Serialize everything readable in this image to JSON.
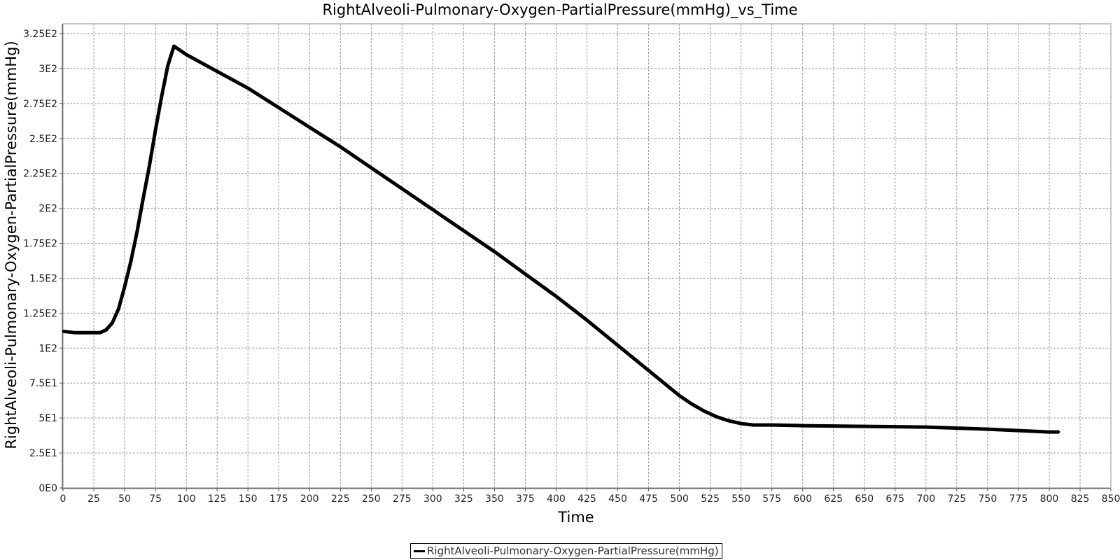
{
  "chart_data": {
    "type": "line",
    "title": "RightAlveoli-Pulmonary-Oxygen-PartialPressure(mmHg)_vs_Time",
    "xlabel": "Time",
    "ylabel": "RightAlveoli-Pulmonary-Oxygen-PartialPressure(mmHg)",
    "xlim": [
      0,
      850
    ],
    "ylim": [
      0,
      332
    ],
    "x_ticks": [
      0,
      25,
      50,
      75,
      100,
      125,
      150,
      175,
      200,
      225,
      250,
      275,
      300,
      325,
      350,
      375,
      400,
      425,
      450,
      475,
      500,
      525,
      550,
      575,
      600,
      625,
      650,
      675,
      700,
      725,
      750,
      775,
      800,
      825,
      850
    ],
    "x_tick_labels": [
      "0",
      "25",
      "50",
      "75",
      "100",
      "125",
      "150",
      "175",
      "200",
      "225",
      "250",
      "275",
      "300",
      "325",
      "350",
      "375",
      "400",
      "425",
      "450",
      "475",
      "500",
      "525",
      "550",
      "575",
      "600",
      "625",
      "650",
      "675",
      "700",
      "725",
      "750",
      "775",
      "800",
      "825",
      "850"
    ],
    "y_ticks": [
      0,
      25,
      50,
      75,
      100,
      125,
      150,
      175,
      200,
      225,
      250,
      275,
      300,
      325
    ],
    "y_tick_labels": [
      "0E0",
      "2.5E1",
      "5E1",
      "7.5E1",
      "1E2",
      "1.25E2",
      "1.5E2",
      "1.75E2",
      "2E2",
      "2.25E2",
      "2.5E2",
      "2.75E2",
      "3E2",
      "3.25E2"
    ],
    "grid": true,
    "legend_position": "bottom-center",
    "line_color": "#000000",
    "series": [
      {
        "name": "RightAlveoli-Pulmonary-Oxygen-PartialPressure(mmHg)",
        "x": [
          0,
          10,
          20,
          30,
          35,
          40,
          45,
          50,
          55,
          60,
          65,
          70,
          75,
          80,
          85,
          90,
          95,
          100,
          125,
          150,
          175,
          200,
          225,
          250,
          275,
          300,
          325,
          350,
          375,
          400,
          425,
          450,
          475,
          500,
          510,
          520,
          530,
          540,
          550,
          560,
          575,
          600,
          650,
          700,
          750,
          800,
          808
        ],
        "y": [
          112,
          111,
          111,
          111,
          113,
          118,
          128,
          144,
          162,
          183,
          207,
          230,
          256,
          280,
          302,
          316,
          313,
          310,
          298,
          286,
          272,
          258,
          244,
          229,
          214,
          199,
          184,
          169,
          153,
          137,
          120,
          102,
          84,
          66,
          60,
          55,
          51,
          48,
          46,
          45,
          45,
          44.5,
          44,
          43.5,
          42,
          40,
          40
        ]
      }
    ]
  }
}
